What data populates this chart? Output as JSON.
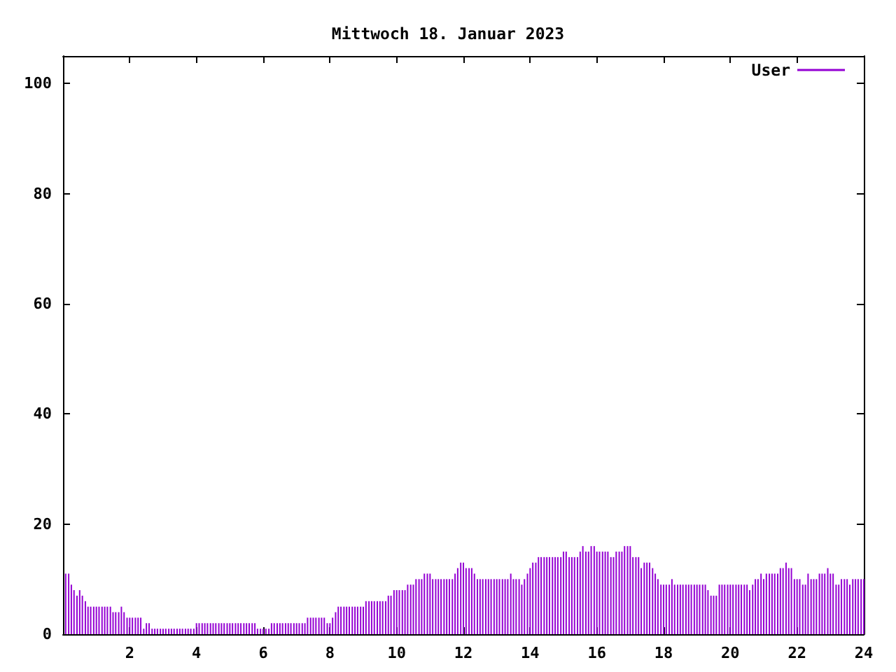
{
  "chart_data": {
    "type": "bar",
    "title": "Mittwoch 18. Januar 2023",
    "x": [
      0.08,
      0.17,
      0.25,
      0.33,
      0.42,
      0.5,
      0.58,
      0.67,
      0.75,
      0.83,
      0.92,
      1,
      1.08,
      1.17,
      1.25,
      1.33,
      1.42,
      1.5,
      1.58,
      1.67,
      1.75,
      1.83,
      1.92,
      2,
      2.08,
      2.17,
      2.25,
      2.33,
      2.42,
      2.5,
      2.58,
      2.67,
      2.75,
      2.83,
      2.92,
      3,
      3.08,
      3.17,
      3.25,
      3.33,
      3.42,
      3.5,
      3.58,
      3.67,
      3.75,
      3.83,
      3.92,
      4,
      4.08,
      4.17,
      4.25,
      4.33,
      4.42,
      4.5,
      4.58,
      4.67,
      4.75,
      4.83,
      4.92,
      5,
      5.08,
      5.17,
      5.25,
      5.33,
      5.42,
      5.5,
      5.58,
      5.67,
      5.75,
      5.83,
      5.92,
      6,
      6.08,
      6.17,
      6.25,
      6.33,
      6.42,
      6.5,
      6.58,
      6.67,
      6.75,
      6.83,
      6.92,
      7,
      7.08,
      7.17,
      7.25,
      7.33,
      7.42,
      7.5,
      7.58,
      7.67,
      7.75,
      7.83,
      7.92,
      8,
      8.08,
      8.17,
      8.25,
      8.33,
      8.42,
      8.5,
      8.58,
      8.67,
      8.75,
      8.83,
      8.92,
      9,
      9.08,
      9.17,
      9.25,
      9.33,
      9.42,
      9.5,
      9.58,
      9.67,
      9.75,
      9.83,
      9.92,
      10,
      10.08,
      10.17,
      10.25,
      10.33,
      10.42,
      10.5,
      10.58,
      10.67,
      10.75,
      10.83,
      10.92,
      11,
      11.08,
      11.17,
      11.25,
      11.33,
      11.42,
      11.5,
      11.58,
      11.67,
      11.75,
      11.83,
      11.92,
      12,
      12.08,
      12.17,
      12.25,
      12.33,
      12.42,
      12.5,
      12.58,
      12.67,
      12.75,
      12.83,
      12.92,
      13,
      13.08,
      13.17,
      13.25,
      13.33,
      13.42,
      13.5,
      13.58,
      13.67,
      13.75,
      13.83,
      13.92,
      14,
      14.08,
      14.17,
      14.25,
      14.33,
      14.42,
      14.5,
      14.58,
      14.67,
      14.75,
      14.83,
      14.92,
      15,
      15.08,
      15.17,
      15.25,
      15.33,
      15.42,
      15.5,
      15.58,
      15.67,
      15.75,
      15.83,
      15.92,
      16,
      16.08,
      16.17,
      16.25,
      16.33,
      16.42,
      16.5,
      16.58,
      16.67,
      16.75,
      16.83,
      16.92,
      17,
      17.08,
      17.17,
      17.25,
      17.33,
      17.42,
      17.5,
      17.58,
      17.67,
      17.75,
      17.83,
      17.92,
      18,
      18.08,
      18.17,
      18.25,
      18.33,
      18.42,
      18.5,
      18.58,
      18.67,
      18.75,
      18.83,
      18.92,
      19,
      19.08,
      19.17,
      19.25,
      19.33,
      19.42,
      19.5,
      19.58,
      19.67,
      19.75,
      19.83,
      19.92,
      20,
      20.08,
      20.17,
      20.25,
      20.33,
      20.42,
      20.5,
      20.58,
      20.67,
      20.75,
      20.83,
      20.92,
      21,
      21.08,
      21.17,
      21.25,
      21.33,
      21.42,
      21.5,
      21.58,
      21.67,
      21.75,
      21.83,
      21.92,
      22,
      22.08,
      22.17,
      22.25,
      22.33,
      22.42,
      22.5,
      22.58,
      22.67,
      22.75,
      22.83,
      22.92,
      23,
      23.08,
      23.17,
      23.25,
      23.33,
      23.42,
      23.5,
      23.58,
      23.67,
      23.75,
      23.83,
      23.92,
      24
    ],
    "series": [
      {
        "name": "User",
        "color": "#9400d3",
        "values": [
          11,
          11,
          9,
          8,
          7,
          8,
          7,
          6,
          5,
          5,
          5,
          5,
          5,
          5,
          5,
          5,
          5,
          4,
          4,
          4,
          5,
          4,
          3,
          3,
          3,
          3,
          3,
          3,
          1,
          2,
          2,
          1,
          1,
          1,
          1,
          1,
          1,
          1,
          1,
          1,
          1,
          1,
          1,
          1,
          1,
          1,
          1,
          2,
          2,
          2,
          2,
          2,
          2,
          2,
          2,
          2,
          2,
          2,
          2,
          2,
          2,
          2,
          2,
          2,
          2,
          2,
          2,
          2,
          2,
          1,
          1,
          1,
          1,
          1,
          2,
          2,
          2,
          2,
          2,
          2,
          2,
          2,
          2,
          2,
          2,
          2,
          2,
          3,
          3,
          3,
          3,
          3,
          3,
          3,
          2,
          2,
          3,
          4,
          5,
          5,
          5,
          5,
          5,
          5,
          5,
          5,
          5,
          5,
          6,
          6,
          6,
          6,
          6,
          6,
          6,
          6,
          7,
          7,
          8,
          8,
          8,
          8,
          8,
          9,
          9,
          9,
          10,
          10,
          10,
          11,
          11,
          11,
          10,
          10,
          10,
          10,
          10,
          10,
          10,
          10,
          11,
          12,
          13,
          13,
          12,
          12,
          12,
          11,
          10,
          10,
          10,
          10,
          10,
          10,
          10,
          10,
          10,
          10,
          10,
          10,
          11,
          10,
          10,
          10,
          9,
          10,
          11,
          12,
          13,
          13,
          14,
          14,
          14,
          14,
          14,
          14,
          14,
          14,
          14,
          15,
          15,
          14,
          14,
          14,
          14,
          15,
          16,
          15,
          15,
          16,
          16,
          15,
          15,
          15,
          15,
          15,
          14,
          14,
          15,
          15,
          15,
          16,
          16,
          16,
          14,
          14,
          14,
          12,
          13,
          13,
          13,
          12,
          11,
          10,
          9,
          9,
          9,
          9,
          10,
          9,
          9,
          9,
          9,
          9,
          9,
          9,
          9,
          9,
          9,
          9,
          9,
          8,
          7,
          7,
          7,
          9,
          9,
          9,
          9,
          9,
          9,
          9,
          9,
          9,
          9,
          9,
          8,
          9,
          10,
          10,
          11,
          10,
          11,
          11,
          11,
          11,
          11,
          12,
          12,
          13,
          12,
          12,
          10,
          10,
          10,
          9,
          9,
          11,
          10,
          10,
          10,
          11,
          11,
          11,
          12,
          11,
          11,
          9,
          9,
          10,
          10,
          10,
          9,
          10,
          10,
          10,
          10,
          10
        ]
      }
    ],
    "xlim": [
      0,
      24
    ],
    "xticks": [
      2,
      4,
      6,
      8,
      10,
      12,
      14,
      16,
      18,
      20,
      22,
      24
    ],
    "ylim": [
      0,
      105
    ],
    "yticks": [
      0,
      20,
      40,
      60,
      80,
      100
    ],
    "grid": false,
    "legend": "top right"
  }
}
